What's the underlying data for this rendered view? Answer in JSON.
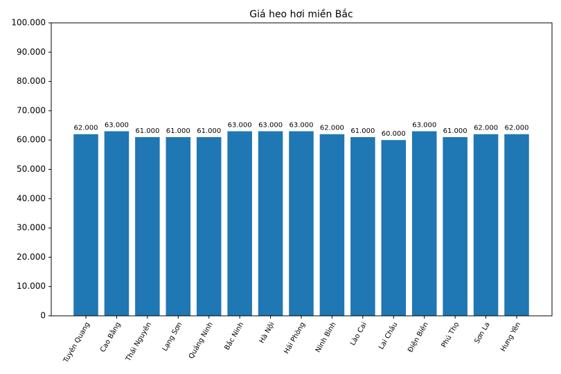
{
  "chart_data": {
    "type": "bar",
    "title": "Giá heo hơi miền Bắc",
    "categories": [
      "Tuyên Quang",
      "Cao Bằng",
      "Thái Nguyên",
      "Lạng Sơn",
      "Quảng Ninh",
      "Bắc Ninh",
      "Hà Nội",
      "Hải Phòng",
      "Ninh Bình",
      "Lào Cai",
      "Lai Châu",
      "Điện Biên",
      "Phú Thọ",
      "Sơn La",
      "Hưng Yên"
    ],
    "values": [
      62000,
      63000,
      61000,
      61000,
      61000,
      63000,
      63000,
      63000,
      62000,
      61000,
      60000,
      63000,
      61000,
      62000,
      62000
    ],
    "value_labels": [
      "62.000",
      "63.000",
      "61.000",
      "61.000",
      "61.000",
      "63.000",
      "63.000",
      "63.000",
      "62.000",
      "61.000",
      "60.000",
      "63.000",
      "61.000",
      "62.000",
      "62.000"
    ],
    "color": "#1f77b4",
    "ylim": [
      0,
      100000
    ],
    "yticks": [
      0,
      {
        "value": 10000,
        "label": "10.000"
      },
      {
        "value": 20000,
        "label": "20.000"
      },
      {
        "value": 30000,
        "label": "30.000"
      },
      {
        "value": 40000,
        "label": "40.000"
      },
      {
        "value": 50000,
        "label": "50.000"
      },
      {
        "value": 60000,
        "label": "60.000"
      },
      {
        "value": 70000,
        "label": "70.000"
      },
      {
        "value": 80000,
        "label": "80.000"
      },
      {
        "value": 90000,
        "label": "90.000"
      },
      {
        "value": 100000,
        "label": "100.000"
      }
    ],
    "grid": false
  }
}
